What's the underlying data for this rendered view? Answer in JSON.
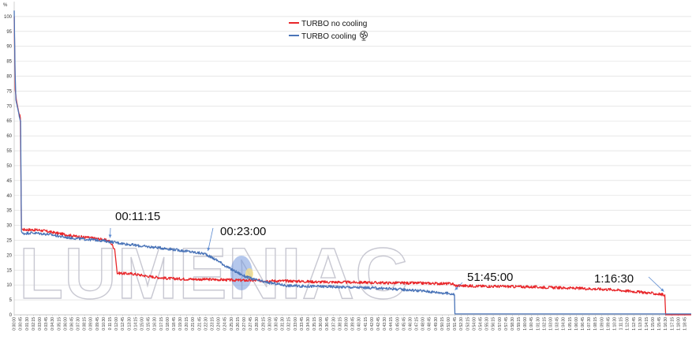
{
  "chart_data": {
    "type": "line",
    "ylabel": "%",
    "ylim": [
      0,
      105
    ],
    "yticks": [
      0,
      5,
      10,
      15,
      20,
      25,
      30,
      35,
      40,
      45,
      50,
      55,
      60,
      65,
      70,
      75,
      80,
      85,
      90,
      95,
      100
    ],
    "x_unit": "minutes",
    "xlim_minutes": [
      0,
      79.5
    ],
    "x_tick_step_minutes": 0.75,
    "x_tick_labels": [
      "0:00:00",
      "0:00:45",
      "0:01:30",
      "0:02:15",
      "0:03:00",
      "0:03:45",
      "0:04:30",
      "0:05:15",
      "0:06:00",
      "0:06:45",
      "0:07:30",
      "0:08:15",
      "0:09:00",
      "0:09:45",
      "0:10:30",
      "0:11:15",
      "0:12:00",
      "0:12:45",
      "0:13:30",
      "0:14:15",
      "0:15:00",
      "0:15:45",
      "0:16:30",
      "0:17:15",
      "0:18:00",
      "0:18:45",
      "0:19:30",
      "0:20:15",
      "0:21:00",
      "0:21:45",
      "0:22:30",
      "0:23:15",
      "0:24:00",
      "0:24:45",
      "0:25:30",
      "0:26:15",
      "0:27:00",
      "0:27:45",
      "0:28:30",
      "0:29:15",
      "0:30:00",
      "0:30:45",
      "0:31:30",
      "0:32:15",
      "0:33:00",
      "0:33:45",
      "0:34:30",
      "0:35:15",
      "0:36:00",
      "0:36:45",
      "0:37:30",
      "0:38:15",
      "0:39:00",
      "0:39:45",
      "0:40:30",
      "0:41:15",
      "0:42:00",
      "0:42:45",
      "0:43:30",
      "0:44:15",
      "0:45:00",
      "0:45:45",
      "0:46:30",
      "0:47:15",
      "0:48:00",
      "0:48:45",
      "0:49:30",
      "0:50:15",
      "0:51:00",
      "0:51:45",
      "0:52:30",
      "0:53:15",
      "0:54:00",
      "0:54:45",
      "0:55:30",
      "0:56:15",
      "0:57:00",
      "0:57:45",
      "0:58:30",
      "0:59:15",
      "1:00:00",
      "1:00:45",
      "1:01:30",
      "1:02:15",
      "1:03:00",
      "1:03:45",
      "1:04:30",
      "1:05:15",
      "1:06:00",
      "1:06:45",
      "1:07:30",
      "1:08:15",
      "1:09:00",
      "1:09:45",
      "1:10:30",
      "1:11:15",
      "1:12:00",
      "1:12:45",
      "1:13:30",
      "1:14:15",
      "1:15:00",
      "1:15:45",
      "1:16:30",
      "1:17:15",
      "1:18:00",
      "1:18:45"
    ],
    "grid": true,
    "legend_position": "top-center",
    "series": [
      {
        "name": "TURBO no cooling",
        "color": "#e8262a",
        "points": [
          [
            0,
            100
          ],
          [
            0.12,
            75
          ],
          [
            0.25,
            72
          ],
          [
            0.55,
            68
          ],
          [
            0.72,
            66
          ],
          [
            0.85,
            29
          ],
          [
            1.0,
            28.6
          ],
          [
            3.0,
            28.4
          ],
          [
            5.0,
            27.4
          ],
          [
            7.0,
            26.4
          ],
          [
            9.0,
            25.8
          ],
          [
            10.5,
            25.2
          ],
          [
            11.25,
            24.6
          ],
          [
            11.8,
            22
          ],
          [
            12.1,
            14
          ],
          [
            14,
            13.7
          ],
          [
            16,
            12.8
          ],
          [
            18,
            12.2
          ],
          [
            20,
            12.0
          ],
          [
            22,
            11.9
          ],
          [
            24,
            11.8
          ],
          [
            26,
            11.6
          ],
          [
            28,
            11.5
          ],
          [
            30,
            11.4
          ],
          [
            33,
            11.3
          ],
          [
            36,
            11.0
          ],
          [
            40,
            10.9
          ],
          [
            44,
            10.7
          ],
          [
            48,
            10.6
          ],
          [
            51.5,
            10.4
          ],
          [
            51.75,
            9.8
          ],
          [
            55,
            9.6
          ],
          [
            60,
            9.4
          ],
          [
            65,
            9.0
          ],
          [
            70,
            8.5
          ],
          [
            74,
            7.5
          ],
          [
            76.4,
            6.7
          ],
          [
            76.5,
            0
          ],
          [
            79.5,
            0
          ]
        ]
      },
      {
        "name": "TURBO cooling",
        "color": "#4a74b8",
        "points": [
          [
            0,
            102
          ],
          [
            0.1,
            82
          ],
          [
            0.2,
            72
          ],
          [
            0.55,
            67
          ],
          [
            0.75,
            65
          ],
          [
            0.85,
            28
          ],
          [
            0.95,
            27.2
          ],
          [
            2,
            27.5
          ],
          [
            4,
            27.0
          ],
          [
            6,
            26.0
          ],
          [
            8,
            25.4
          ],
          [
            10,
            25.0
          ],
          [
            11.25,
            24.5
          ],
          [
            13,
            23.8
          ],
          [
            15,
            23.0
          ],
          [
            17,
            22.5
          ],
          [
            19,
            21.8
          ],
          [
            21,
            21.0
          ],
          [
            22.5,
            20.4
          ],
          [
            23,
            19.5
          ],
          [
            24,
            18.0
          ],
          [
            25,
            16.0
          ],
          [
            26,
            14.5
          ],
          [
            27,
            13.0
          ],
          [
            28,
            12.0
          ],
          [
            29,
            11.2
          ],
          [
            30,
            10.7
          ],
          [
            31,
            10.3
          ],
          [
            32,
            9.8
          ],
          [
            34,
            9.6
          ],
          [
            36,
            9.5
          ],
          [
            40,
            9.2
          ],
          [
            44,
            8.8
          ],
          [
            48,
            8.0
          ],
          [
            51.5,
            7.0
          ],
          [
            51.7,
            6.7
          ],
          [
            51.75,
            0.3
          ],
          [
            55,
            0.3
          ],
          [
            60,
            0.3
          ],
          [
            70,
            0.3
          ],
          [
            79.5,
            0.3
          ]
        ]
      }
    ],
    "annotations": [
      {
        "text": "00:11:15",
        "arrow_to": [
          11.25,
          25
        ]
      },
      {
        "text": "00:23:00",
        "arrow_to": [
          22.75,
          20.6
        ]
      },
      {
        "text": "51:45:00",
        "arrow_to": [
          51.75,
          7.5
        ]
      },
      {
        "text": "1:16:30",
        "arrow_to": [
          76.3,
          7.0
        ]
      }
    ]
  },
  "watermark": {
    "text": "LUMENIAC"
  },
  "legend_icon": "fan-icon"
}
